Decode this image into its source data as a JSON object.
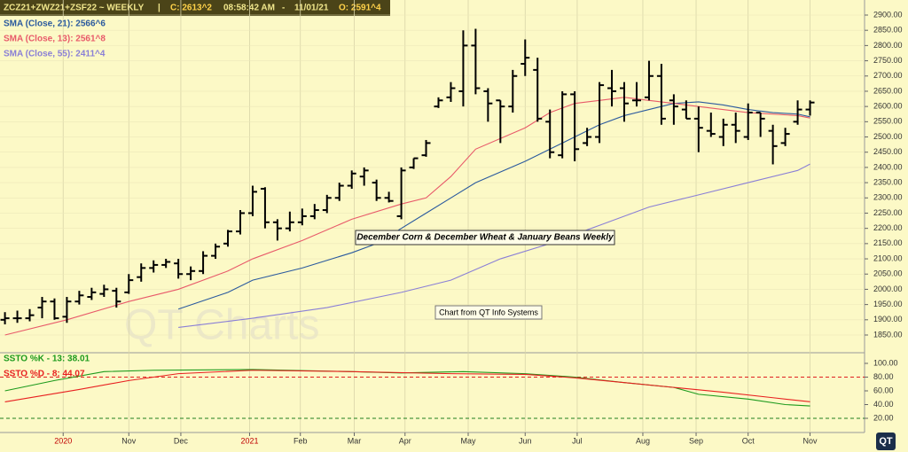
{
  "chart_data": {
    "type": "ohlc",
    "header": {
      "symbol": "ZCZ21+ZWZ21+ZSF22  ~  WEEKLY",
      "sep": "|",
      "close": "C: 2613^2",
      "time": "08:58:42 AM",
      "dash": "-",
      "date": "11/01/21",
      "open": "O: 2591^4"
    },
    "annotations": [
      "December Corn & December Wheat & January Beans Weekly",
      "Chart from QT Info Systems"
    ],
    "watermark": "QT Charts",
    "logo": "QT",
    "xlim": [
      -0.4,
      69.4
    ],
    "xticks": [
      {
        "value": 4.7,
        "label": "2020"
      },
      {
        "value": 10,
        "label": "Nov"
      },
      {
        "value": 14.2,
        "label": "Dec"
      },
      {
        "value": 19.75,
        "label": "2021"
      },
      {
        "value": 23.85,
        "label": "Feb"
      },
      {
        "value": 28.2,
        "label": "Mar"
      },
      {
        "value": 32.3,
        "label": "Apr"
      },
      {
        "value": 37.4,
        "label": "May"
      },
      {
        "value": 42,
        "label": "Jun"
      },
      {
        "value": 46.2,
        "label": "Jul"
      },
      {
        "value": 51.5,
        "label": "Aug"
      },
      {
        "value": 55.8,
        "label": "Sep"
      },
      {
        "value": 60,
        "label": "Oct"
      },
      {
        "value": 65,
        "label": "Nov"
      }
    ],
    "ylim": [
      1790,
      2950
    ],
    "yticks": [
      {
        "value": 1850,
        "label": "1850.00"
      },
      {
        "value": 1900,
        "label": "1900.00"
      },
      {
        "value": 1950,
        "label": "1950.00"
      },
      {
        "value": 2000,
        "label": "2000.00"
      },
      {
        "value": 2050,
        "label": "2050.00"
      },
      {
        "value": 2100,
        "label": "2100.00"
      },
      {
        "value": 2150,
        "label": "2150.00"
      },
      {
        "value": 2200,
        "label": "2200.00"
      },
      {
        "value": 2250,
        "label": "2250.00"
      },
      {
        "value": 2300,
        "label": "2300.00"
      },
      {
        "value": 2350,
        "label": "2350.00"
      },
      {
        "value": 2400,
        "label": "2400.00"
      },
      {
        "value": 2450,
        "label": "2450.00"
      },
      {
        "value": 2500,
        "label": "2500.00"
      },
      {
        "value": 2550,
        "label": "2550.00"
      },
      {
        "value": 2600,
        "label": "2600.00"
      },
      {
        "value": 2650,
        "label": "2650.00"
      },
      {
        "value": 2700,
        "label": "2700.00"
      },
      {
        "value": 2750,
        "label": "2750.00"
      },
      {
        "value": 2800,
        "label": "2800.00"
      },
      {
        "value": 2850,
        "label": "2850.00"
      },
      {
        "value": 2900,
        "label": "2900.00"
      }
    ],
    "bars": {
      "color": "#000000",
      "open": [
        1900,
        1905,
        1905,
        1940,
        1960,
        1910,
        1960,
        1975,
        1985,
        1995,
        1990,
        2040,
        2070,
        2080,
        2085,
        2050,
        2060,
        2110,
        2150,
        2190,
        2250,
        2330,
        2220,
        2200,
        2220,
        2240,
        2260,
        2300,
        2340,
        2370,
        2350,
        2300,
        2240,
        2400,
        2440,
        2600,
        2630,
        2650,
        2800,
        2650,
        2620,
        2600,
        2740,
        2720,
        2550,
        2440,
        2640,
        2480,
        2500,
        2660,
        2660,
        2620,
        2630,
        2700,
        2620,
        2590,
        2560,
        2520,
        2500,
        2540,
        2500,
        2580,
        2520,
        2480,
        2550,
        2590
      ],
      "high": [
        1925,
        1930,
        1935,
        1975,
        1970,
        1975,
        1995,
        2005,
        2015,
        2005,
        2050,
        2085,
        2095,
        2100,
        2100,
        2075,
        2125,
        2150,
        2195,
        2260,
        2340,
        2335,
        2230,
        2255,
        2265,
        2280,
        2310,
        2350,
        2390,
        2400,
        2360,
        2320,
        2400,
        2430,
        2490,
        2630,
        2680,
        2850,
        2855,
        2660,
        2620,
        2720,
        2820,
        2760,
        2590,
        2650,
        2650,
        2530,
        2680,
        2720,
        2680,
        2680,
        2750,
        2740,
        2640,
        2620,
        2600,
        2580,
        2560,
        2580,
        2610,
        2580,
        2540,
        2530,
        2620,
        2620
      ],
      "low": [
        1885,
        1890,
        1895,
        1905,
        1900,
        1890,
        1950,
        1965,
        1975,
        1940,
        1985,
        2025,
        2055,
        2070,
        2035,
        2030,
        2050,
        2100,
        2140,
        2180,
        2240,
        2200,
        2160,
        2190,
        2210,
        2230,
        2250,
        2290,
        2330,
        2340,
        2290,
        2285,
        2230,
        2395,
        2435,
        2595,
        2615,
        2600,
        2640,
        2550,
        2480,
        2580,
        2700,
        2550,
        2430,
        2430,
        2420,
        2470,
        2480,
        2600,
        2550,
        2600,
        2620,
        2540,
        2540,
        2560,
        2450,
        2500,
        2470,
        2480,
        2490,
        2500,
        2410,
        2470,
        2540,
        2570
      ],
      "close": [
        1905,
        1905,
        1915,
        1960,
        1905,
        1960,
        1980,
        1990,
        2000,
        1960,
        2030,
        2070,
        2080,
        2090,
        2050,
        2060,
        2110,
        2140,
        2190,
        2250,
        2320,
        2220,
        2200,
        2220,
        2240,
        2260,
        2300,
        2340,
        2380,
        2390,
        2300,
        2290,
        2390,
        2430,
        2480,
        2620,
        2660,
        2800,
        2660,
        2610,
        2600,
        2700,
        2760,
        2560,
        2450,
        2640,
        2460,
        2500,
        2670,
        2650,
        2610,
        2620,
        2700,
        2560,
        2600,
        2560,
        2530,
        2510,
        2540,
        2520,
        2580,
        2560,
        2470,
        2510,
        2590,
        2613
      ]
    },
    "series": [
      {
        "name": "SMA (Close, 21): 2566^6",
        "color": "#2b5a9e",
        "x": [
          14,
          18,
          20,
          24,
          28,
          30,
          32,
          34,
          36,
          38,
          42,
          44,
          46,
          48,
          50,
          52,
          54,
          56,
          58,
          60,
          62,
          64,
          65
        ],
        "values": [
          1935,
          1990,
          2030,
          2070,
          2120,
          2150,
          2200,
          2250,
          2300,
          2350,
          2420,
          2460,
          2500,
          2540,
          2570,
          2590,
          2610,
          2615,
          2605,
          2590,
          2580,
          2575,
          2566
        ]
      },
      {
        "name": "SMA (Close, 13): 2561^8",
        "color": "#e85a6a",
        "x": [
          0,
          5,
          10,
          14,
          18,
          20,
          24,
          28,
          32,
          34,
          36,
          38,
          42,
          44,
          46,
          48,
          50,
          52,
          56,
          60,
          64,
          65
        ],
        "values": [
          1850,
          1900,
          1960,
          2000,
          2060,
          2100,
          2160,
          2230,
          2280,
          2300,
          2370,
          2460,
          2530,
          2580,
          2610,
          2620,
          2630,
          2620,
          2600,
          2580,
          2570,
          2562
        ]
      },
      {
        "name": "SMA (Close, 55): 2411^4",
        "color": "#8a7fd6",
        "x": [
          14,
          20,
          26,
          32,
          36,
          40,
          44,
          48,
          52,
          56,
          60,
          64,
          65
        ],
        "values": [
          1875,
          1905,
          1940,
          1990,
          2030,
          2100,
          2150,
          2210,
          2270,
          2310,
          2350,
          2390,
          2411
        ]
      }
    ],
    "stoch": {
      "ylim": [
        10,
        105
      ],
      "yticks": [
        {
          "value": 20,
          "label": "20.00"
        },
        {
          "value": 40,
          "label": "40.00"
        },
        {
          "value": 60,
          "label": "60.00"
        },
        {
          "value": 80,
          "label": "80.00"
        },
        {
          "value": 100,
          "label": "100.00"
        }
      ],
      "levels": [
        {
          "value": 80,
          "color": "#e02020"
        },
        {
          "value": 20,
          "color": "#208020"
        }
      ],
      "series": [
        {
          "name": "SSTO %K - 13: 38.01",
          "color": "#1c9a1c",
          "x": [
            0,
            4,
            8,
            12,
            20,
            28,
            32,
            37,
            42,
            46,
            50,
            54,
            56,
            60,
            63,
            65
          ],
          "values": [
            60,
            75,
            88,
            90,
            91,
            88,
            86,
            88,
            85,
            80,
            72,
            65,
            55,
            48,
            40,
            38.01
          ]
        },
        {
          "name": "SSTO %D - 8: 44.07",
          "color": "#e82020",
          "x": [
            0,
            6,
            10,
            14,
            20,
            28,
            36,
            42,
            46,
            50,
            54,
            58,
            62,
            65
          ],
          "values": [
            44,
            62,
            75,
            85,
            90,
            88,
            85,
            84,
            79,
            72,
            65,
            58,
            50,
            44.07
          ]
        }
      ]
    }
  }
}
